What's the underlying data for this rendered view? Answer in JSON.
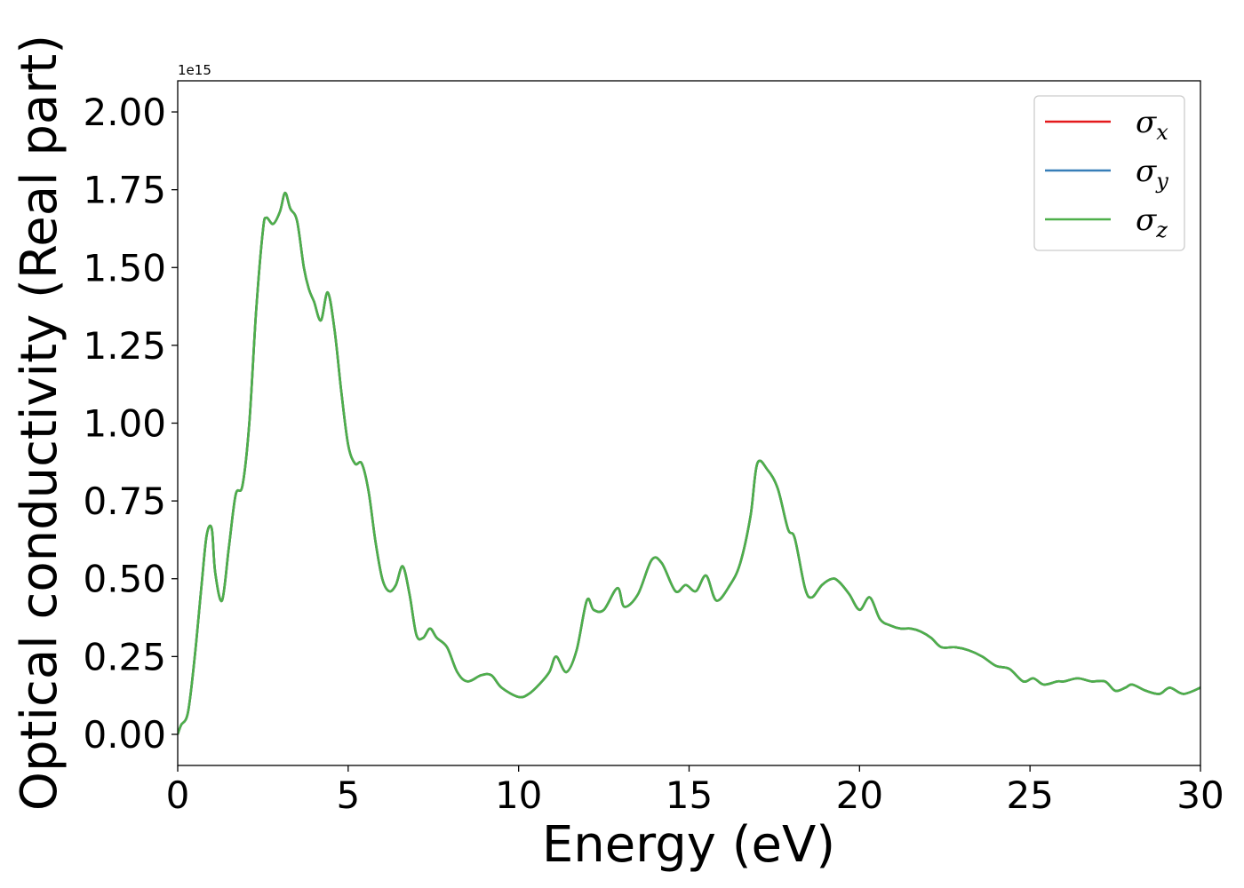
{
  "chart_data": {
    "type": "line",
    "xlabel": "Energy (eV)",
    "ylabel": "Optical conductivity (Real part)",
    "offset_text": "1e15",
    "y_multiplier": 1000000000000000.0,
    "xlim": [
      0,
      30
    ],
    "ylim": [
      -0.1,
      2.1
    ],
    "x_ticks": [
      0,
      5,
      10,
      15,
      20,
      25,
      30
    ],
    "x_tick_labels": [
      "0",
      "5",
      "10",
      "15",
      "20",
      "25",
      "30"
    ],
    "y_ticks": [
      0.0,
      0.25,
      0.5,
      0.75,
      1.0,
      1.25,
      1.5,
      1.75,
      2.0
    ],
    "y_tick_labels": [
      "0.00",
      "0.25",
      "0.50",
      "0.75",
      "1.00",
      "1.25",
      "1.50",
      "1.75",
      "2.00"
    ],
    "grid": false,
    "legend_position": "top-right",
    "series": [
      {
        "name": "σx",
        "base": "σ",
        "sub": "x",
        "color": "#e41a1c"
      },
      {
        "name": "σy",
        "base": "σ",
        "sub": "y",
        "color": "#377eb8"
      },
      {
        "name": "σz",
        "base": "σ",
        "sub": "z",
        "color": "#4daf4a"
      }
    ],
    "x": [
      0.0,
      0.1,
      0.3,
      0.5,
      0.7,
      0.85,
      1.0,
      1.1,
      1.3,
      1.5,
      1.7,
      1.9,
      2.1,
      2.3,
      2.5,
      2.6,
      2.8,
      3.0,
      3.15,
      3.3,
      3.5,
      3.7,
      3.85,
      4.0,
      4.2,
      4.4,
      4.6,
      4.8,
      5.0,
      5.2,
      5.4,
      5.6,
      5.8,
      6.0,
      6.2,
      6.4,
      6.6,
      6.8,
      7.0,
      7.2,
      7.4,
      7.6,
      7.9,
      8.2,
      8.5,
      8.9,
      9.2,
      9.5,
      10.0,
      10.3,
      10.6,
      10.9,
      11.1,
      11.4,
      11.7,
      12.0,
      12.2,
      12.5,
      12.9,
      13.1,
      13.5,
      13.9,
      14.2,
      14.6,
      14.9,
      15.2,
      15.5,
      15.8,
      16.2,
      16.5,
      16.8,
      17.0,
      17.3,
      17.6,
      17.9,
      18.1,
      18.4,
      18.6,
      18.9,
      19.2,
      19.4,
      19.7,
      20.0,
      20.3,
      20.6,
      20.9,
      21.2,
      21.5,
      21.8,
      22.1,
      22.4,
      22.8,
      23.2,
      23.6,
      24.0,
      24.4,
      24.8,
      25.1,
      25.4,
      25.8,
      26.0,
      26.4,
      26.8,
      27.2,
      27.5,
      27.8,
      28.0,
      28.4,
      28.8,
      29.1,
      29.5,
      30.0
    ],
    "values": [
      0.0,
      0.03,
      0.07,
      0.25,
      0.48,
      0.64,
      0.66,
      0.52,
      0.43,
      0.6,
      0.77,
      0.8,
      1.0,
      1.36,
      1.62,
      1.66,
      1.64,
      1.68,
      1.74,
      1.69,
      1.65,
      1.5,
      1.43,
      1.39,
      1.33,
      1.42,
      1.3,
      1.1,
      0.93,
      0.87,
      0.87,
      0.78,
      0.62,
      0.5,
      0.46,
      0.48,
      0.54,
      0.45,
      0.32,
      0.31,
      0.34,
      0.31,
      0.28,
      0.2,
      0.17,
      0.19,
      0.19,
      0.15,
      0.12,
      0.13,
      0.16,
      0.2,
      0.25,
      0.2,
      0.27,
      0.43,
      0.4,
      0.4,
      0.47,
      0.41,
      0.45,
      0.56,
      0.55,
      0.46,
      0.48,
      0.46,
      0.51,
      0.43,
      0.48,
      0.55,
      0.7,
      0.87,
      0.85,
      0.79,
      0.66,
      0.63,
      0.47,
      0.44,
      0.48,
      0.5,
      0.49,
      0.45,
      0.4,
      0.44,
      0.37,
      0.35,
      0.34,
      0.34,
      0.33,
      0.31,
      0.28,
      0.28,
      0.27,
      0.25,
      0.22,
      0.21,
      0.17,
      0.18,
      0.16,
      0.17,
      0.17,
      0.18,
      0.17,
      0.17,
      0.14,
      0.15,
      0.16,
      0.14,
      0.13,
      0.15,
      0.13,
      0.15
    ]
  }
}
